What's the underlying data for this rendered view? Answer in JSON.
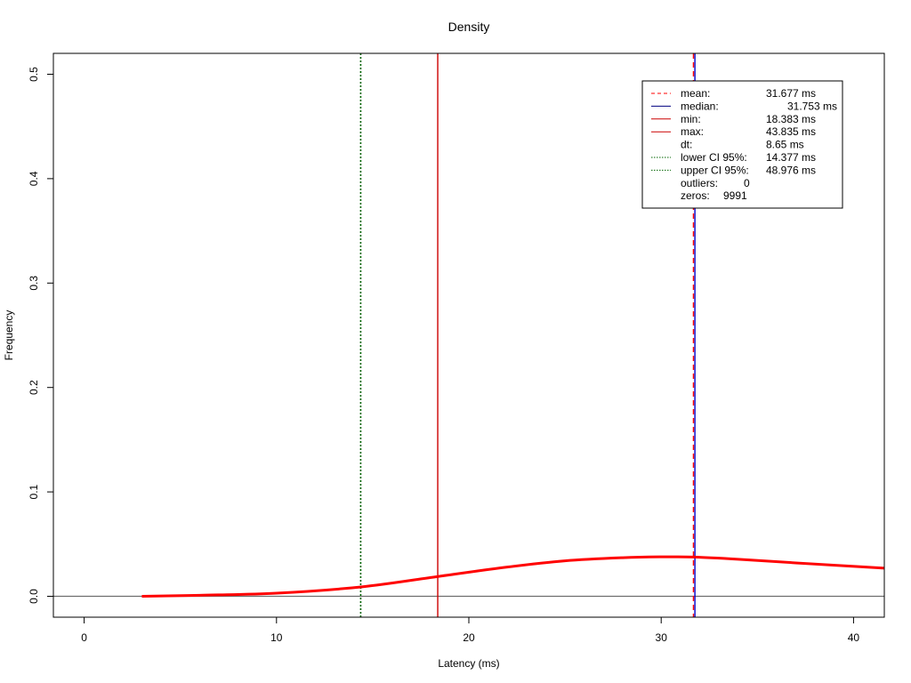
{
  "chart_data": {
    "type": "line",
    "title": "Density",
    "xlabel": "Latency (ms)",
    "ylabel": "Frequency",
    "xlim": [
      -1.6,
      41.6
    ],
    "ylim": [
      -0.02,
      0.52
    ],
    "x_ticks": [
      0,
      10,
      20,
      30,
      40
    ],
    "x_tick_labels": [
      "0",
      "10",
      "20",
      "30",
      "40"
    ],
    "y_ticks": [
      0.0,
      0.1,
      0.2,
      0.3,
      0.4,
      0.5
    ],
    "y_tick_labels": [
      "0.0",
      "0.1",
      "0.2",
      "0.3",
      "0.4",
      "0.5"
    ],
    "grid": false,
    "series": [
      {
        "color": "#ff0000",
        "x": [
          3,
          6,
          10,
          14.4,
          18.4,
          22,
          25,
          28,
          30,
          31.7,
          34,
          37,
          41.6
        ],
        "y": [
          0.0,
          0.001,
          0.003,
          0.009,
          0.019,
          0.028,
          0.034,
          0.037,
          0.0378,
          0.0376,
          0.0355,
          0.032,
          0.027
        ]
      }
    ],
    "hlines": [
      {
        "y": 0.0,
        "color": "#6e6e6e",
        "style": "solid"
      }
    ],
    "vlines": [
      {
        "key": "lower_ci",
        "x": 14.377,
        "color": "#006400",
        "style": "dotted"
      },
      {
        "key": "min",
        "x": 18.383,
        "color": "#cc0000",
        "style": "solid"
      },
      {
        "key": "mean",
        "x": 31.677,
        "color": "#ff0000",
        "style": "dashed"
      },
      {
        "key": "median",
        "x": 31.753,
        "color": "#0000cc",
        "style": "solid"
      }
    ],
    "legend": {
      "position": "top-right",
      "entries": [
        {
          "label": "mean:",
          "value": "31.677 ms",
          "color": "#ff0000",
          "style": "dashed"
        },
        {
          "label": "median:",
          "value": "31.753 ms",
          "color": "#000080",
          "style": "solid"
        },
        {
          "label": "min:",
          "value": "18.383 ms",
          "color": "#cc0000",
          "style": "solid"
        },
        {
          "label": "max:",
          "value": "43.835 ms",
          "color": "#cc0000",
          "style": "solid"
        },
        {
          "label": "dt:",
          "value": "8.65 ms",
          "color": "",
          "style": "none"
        },
        {
          "label": "lower CI 95%:",
          "value": "14.377 ms",
          "color": "#006400",
          "style": "dotted"
        },
        {
          "label": "upper CI 95%:",
          "value": "48.976 ms",
          "color": "#006400",
          "style": "dotted"
        },
        {
          "label": "outliers:",
          "value": "0",
          "color": "",
          "style": "none"
        },
        {
          "label": "zeros:",
          "value": "9991",
          "color": "",
          "style": "none"
        }
      ]
    }
  }
}
